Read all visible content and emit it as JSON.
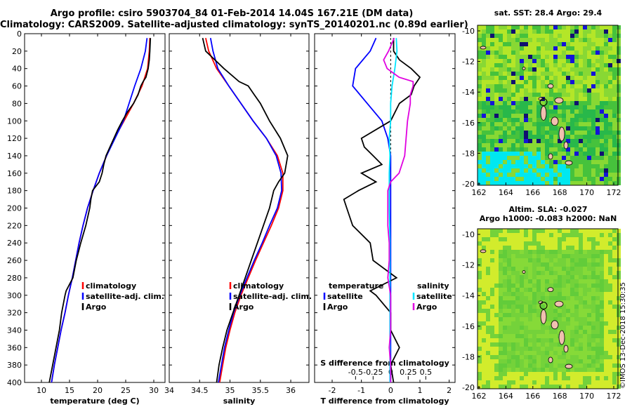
{
  "header": {
    "title_line1": "Argo profile: csiro 5903704_84 01-Feb-2014 14.04S 167.21E (DM data)",
    "title_line2": "Climatology: CARS2009. Satellite-adjusted climatology: synTS_20140201.nc (0.89d earlier)"
  },
  "colors": {
    "climatology": "#ff0000",
    "satellite": "#0000ff",
    "argo": "#000000",
    "sal_satellite": "#00e5ff",
    "sal_argo": "#e000e0"
  },
  "chart_data": [
    {
      "type": "line",
      "name": "temperature-panel",
      "xlabel": "temperature (deg C)",
      "ylim": [
        0,
        400
      ],
      "xlim": [
        7,
        32
      ],
      "xticks": [
        10,
        15,
        20,
        25,
        30
      ],
      "yticks": [
        0,
        20,
        40,
        60,
        80,
        100,
        120,
        140,
        160,
        180,
        200,
        220,
        240,
        260,
        280,
        300,
        320,
        340,
        360,
        380,
        400
      ],
      "legend": [
        "climatology",
        "satellite-adj. clim.",
        "Argo"
      ],
      "series": [
        {
          "name": "climatology",
          "depth": [
            5,
            20,
            40,
            60,
            80,
            100,
            120,
            140,
            160,
            180,
            200,
            220,
            240,
            260,
            280,
            300,
            320,
            340,
            360,
            380,
            400
          ],
          "values": [
            29.3,
            29.2,
            28.9,
            27.9,
            26.4,
            24.7,
            23.0,
            21.6,
            20.3,
            19.2,
            18.2,
            17.4,
            16.7,
            16.1,
            15.5,
            14.8,
            14.2,
            13.5,
            12.9,
            12.3,
            11.8
          ]
        },
        {
          "name": "satellite-adj. clim.",
          "depth": [
            5,
            20,
            40,
            60,
            80,
            100,
            120,
            140,
            160,
            180,
            200,
            220,
            240,
            260,
            280,
            300,
            320,
            340,
            360,
            380,
            400
          ],
          "values": [
            28.8,
            28.5,
            27.7,
            26.6,
            25.6,
            24.6,
            23.1,
            21.6,
            20.3,
            19.2,
            18.2,
            17.4,
            16.7,
            16.1,
            15.5,
            14.8,
            14.2,
            13.5,
            12.9,
            12.3,
            11.8
          ]
        },
        {
          "name": "Argo",
          "depth": [
            5,
            20,
            30,
            40,
            50,
            55,
            60,
            70,
            80,
            90,
            100,
            110,
            120,
            130,
            140,
            150,
            160,
            170,
            180,
            190,
            200,
            220,
            240,
            260,
            280,
            295,
            300,
            320,
            340,
            360,
            380,
            400
          ],
          "values": [
            29.4,
            29.3,
            29.2,
            29.0,
            28.6,
            28.1,
            27.7,
            27.2,
            26.4,
            25.3,
            24.4,
            23.6,
            22.9,
            22.2,
            21.5,
            21.1,
            20.8,
            20.3,
            19.1,
            18.8,
            18.6,
            17.9,
            17.0,
            16.2,
            15.6,
            14.4,
            14.2,
            13.6,
            13.2,
            12.6,
            12.0,
            11.4
          ]
        }
      ]
    },
    {
      "type": "line",
      "name": "salinity-panel",
      "xlabel": "salinity",
      "ylim": [
        0,
        400
      ],
      "xlim": [
        34.0,
        36.3
      ],
      "xticks": [
        34,
        34.5,
        35,
        35.5,
        36
      ],
      "xticklabels": [
        "34",
        "34.5",
        "35",
        "35.5",
        "36"
      ],
      "legend": [
        "climatology",
        "satellite-adj. clim.",
        "Argo"
      ],
      "series": [
        {
          "name": "climatology",
          "depth": [
            5,
            20,
            40,
            60,
            80,
            100,
            120,
            140,
            160,
            180,
            200,
            220,
            240,
            260,
            280,
            300,
            320,
            340,
            360,
            380,
            400
          ],
          "values": [
            34.6,
            34.65,
            34.78,
            34.98,
            35.18,
            35.38,
            35.6,
            35.78,
            35.87,
            35.87,
            35.8,
            35.68,
            35.55,
            35.42,
            35.3,
            35.18,
            35.08,
            35.0,
            34.93,
            34.88,
            34.83
          ]
        },
        {
          "name": "satellite-adj. clim.",
          "depth": [
            5,
            20,
            40,
            60,
            80,
            100,
            120,
            140,
            160,
            180,
            200,
            220,
            240,
            260,
            280,
            300,
            320,
            340,
            360,
            380,
            400
          ],
          "values": [
            34.68,
            34.72,
            34.8,
            34.98,
            35.18,
            35.38,
            35.6,
            35.76,
            35.84,
            35.85,
            35.78,
            35.65,
            35.53,
            35.4,
            35.28,
            35.16,
            35.06,
            34.98,
            34.91,
            34.86,
            34.81
          ]
        },
        {
          "name": "Argo",
          "depth": [
            5,
            20,
            40,
            55,
            60,
            70,
            80,
            100,
            120,
            140,
            160,
            170,
            180,
            200,
            220,
            240,
            260,
            280,
            300,
            320,
            340,
            360,
            380,
            400
          ],
          "values": [
            34.55,
            34.6,
            34.9,
            35.15,
            35.3,
            35.4,
            35.5,
            35.65,
            35.83,
            35.95,
            35.9,
            35.8,
            35.72,
            35.65,
            35.55,
            35.45,
            35.35,
            35.25,
            35.15,
            35.05,
            34.95,
            34.88,
            34.82,
            34.78
          ]
        }
      ]
    },
    {
      "type": "line",
      "name": "difference-panel",
      "xlabel": "T difference from climatology",
      "top_xlabel": "S difference from climatology",
      "ylim": [
        0,
        400
      ],
      "xlim": [
        -2.6,
        2.2
      ],
      "xticks": [
        -2,
        -1,
        0,
        1,
        2
      ],
      "xticklabels": [
        "-2",
        "-1",
        "0",
        "1",
        "2"
      ],
      "s_ticks": [
        -0.5,
        -0.25,
        0,
        0.25,
        0.5
      ],
      "s_ticklabels": [
        "-0.5",
        "-0.25",
        "0",
        "0.25",
        "0.5"
      ],
      "legend_temperature_title": "temperature",
      "legend_salinity_title": "salinity",
      "legend_temperature": [
        "satellite",
        "Argo"
      ],
      "legend_salinity": [
        "satellite",
        "Argo"
      ],
      "series": [
        {
          "name": "T satellite",
          "depth": [
            5,
            20,
            40,
            60,
            80,
            100,
            120,
            140,
            160,
            180,
            200,
            240,
            280,
            320,
            360,
            400
          ],
          "values": [
            -0.5,
            -0.7,
            -1.2,
            -1.3,
            -0.8,
            -0.3,
            -0.1,
            0.0,
            0.0,
            0.0,
            0.0,
            0.0,
            0.0,
            0.0,
            0.0,
            0.0
          ]
        },
        {
          "name": "T Argo",
          "depth": [
            5,
            20,
            30,
            40,
            50,
            60,
            70,
            80,
            100,
            120,
            130,
            140,
            150,
            160,
            170,
            180,
            190,
            200,
            220,
            240,
            260,
            280,
            295,
            300,
            320,
            340,
            360,
            380,
            400
          ],
          "values": [
            0.1,
            0.1,
            0.3,
            0.7,
            1.0,
            0.8,
            0.7,
            0.3,
            0.0,
            -1.0,
            -0.9,
            -0.6,
            -0.3,
            -1.0,
            -0.5,
            -1.1,
            -1.6,
            -1.5,
            -1.3,
            -0.7,
            -0.6,
            0.2,
            -0.7,
            -0.5,
            0.0,
            0.0,
            0.3,
            0.0,
            0.1
          ]
        },
        {
          "name": "S satellite",
          "depth": [
            5,
            20,
            40,
            60,
            80,
            100,
            120,
            140,
            160,
            200,
            240,
            280,
            320,
            360,
            400
          ],
          "values": [
            0.08,
            0.09,
            0.06,
            0.02,
            0.0,
            0.0,
            -0.02,
            -0.01,
            -0.02,
            -0.02,
            -0.01,
            -0.01,
            -0.01,
            -0.01,
            -0.01
          ]
        },
        {
          "name": "S Argo",
          "depth": [
            5,
            20,
            30,
            40,
            50,
            55,
            60,
            70,
            80,
            100,
            120,
            140,
            160,
            170,
            180,
            200,
            220,
            240,
            260,
            280,
            300,
            320,
            340,
            360,
            380,
            400
          ],
          "values": [
            0.05,
            -0.03,
            -0.1,
            -0.05,
            0.12,
            0.32,
            0.32,
            0.28,
            0.28,
            0.24,
            0.22,
            0.2,
            0.12,
            0.0,
            -0.04,
            -0.04,
            -0.04,
            -0.02,
            -0.02,
            -0.04,
            0.0,
            0.0,
            0.0,
            -0.02,
            0.0,
            0.0
          ]
        }
      ]
    }
  ],
  "maps": {
    "sst_title": "sat. SST: 28.4 Argo: 29.4",
    "sla_title_line1": "Altim. SLA: -0.027",
    "sla_title_line2": "Argo h1000: -0.083 h2000: NaN",
    "xticks": [
      "162",
      "164",
      "166",
      "168",
      "170",
      "172"
    ],
    "yticks": [
      "-10",
      "-12",
      "-14",
      "-16",
      "-18",
      "-20"
    ]
  },
  "footer": {
    "stamp": "©IMOS 13-Dec-2018 15:30:35"
  }
}
